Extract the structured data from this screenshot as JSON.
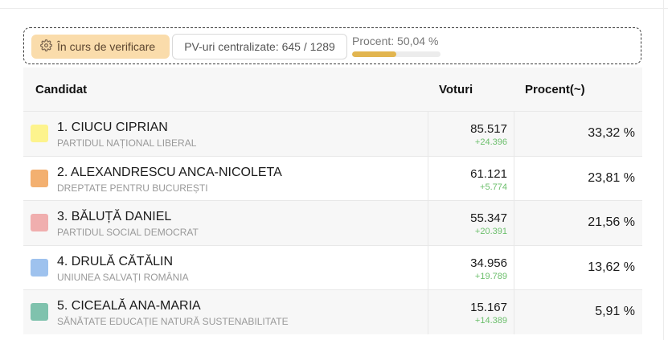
{
  "status": {
    "label": "În curs de verificare",
    "pv_label": "PV-uri centralizate: 645 / 1289",
    "percent_label": "Procent: 50,04 %",
    "percent_value": 0.5004
  },
  "table": {
    "headers": {
      "candidate": "Candidat",
      "votes": "Voturi",
      "percent": "Procent(~)"
    },
    "rows": [
      {
        "name": "1. CIUCU CIPRIAN",
        "party": "PARTIDUL NAȚIONAL LIBERAL",
        "votes": "85.517",
        "delta": "+24.396",
        "percent": "33,32 %",
        "color": "#fdf38d"
      },
      {
        "name": "2. ALEXANDRESCU ANCA-NICOLETA",
        "party": "DREPTATE PENTRU BUCUREȘTI",
        "votes": "61.121",
        "delta": "+5.774",
        "percent": "23,81 %",
        "color": "#f3b070"
      },
      {
        "name": "3. BĂLUȚĂ DANIEL",
        "party": "PARTIDUL SOCIAL DEMOCRAT",
        "votes": "55.347",
        "delta": "+20.391",
        "percent": "21,56 %",
        "color": "#f0aeae"
      },
      {
        "name": "4. DRULĂ CĂTĂLIN",
        "party": "UNIUNEA SALVAȚI ROMÂNIA",
        "votes": "34.956",
        "delta": "+19.789",
        "percent": "13,62 %",
        "color": "#9ec2ee"
      },
      {
        "name": "5. CICEALĂ ANA-MARIA",
        "party": "SĂNĂTATE EDUCAȚIE NATURĂ SUSTENABILITATE",
        "votes": "15.167",
        "delta": "+14.389",
        "percent": "5,91 %",
        "color": "#7fc2ad"
      }
    ]
  }
}
